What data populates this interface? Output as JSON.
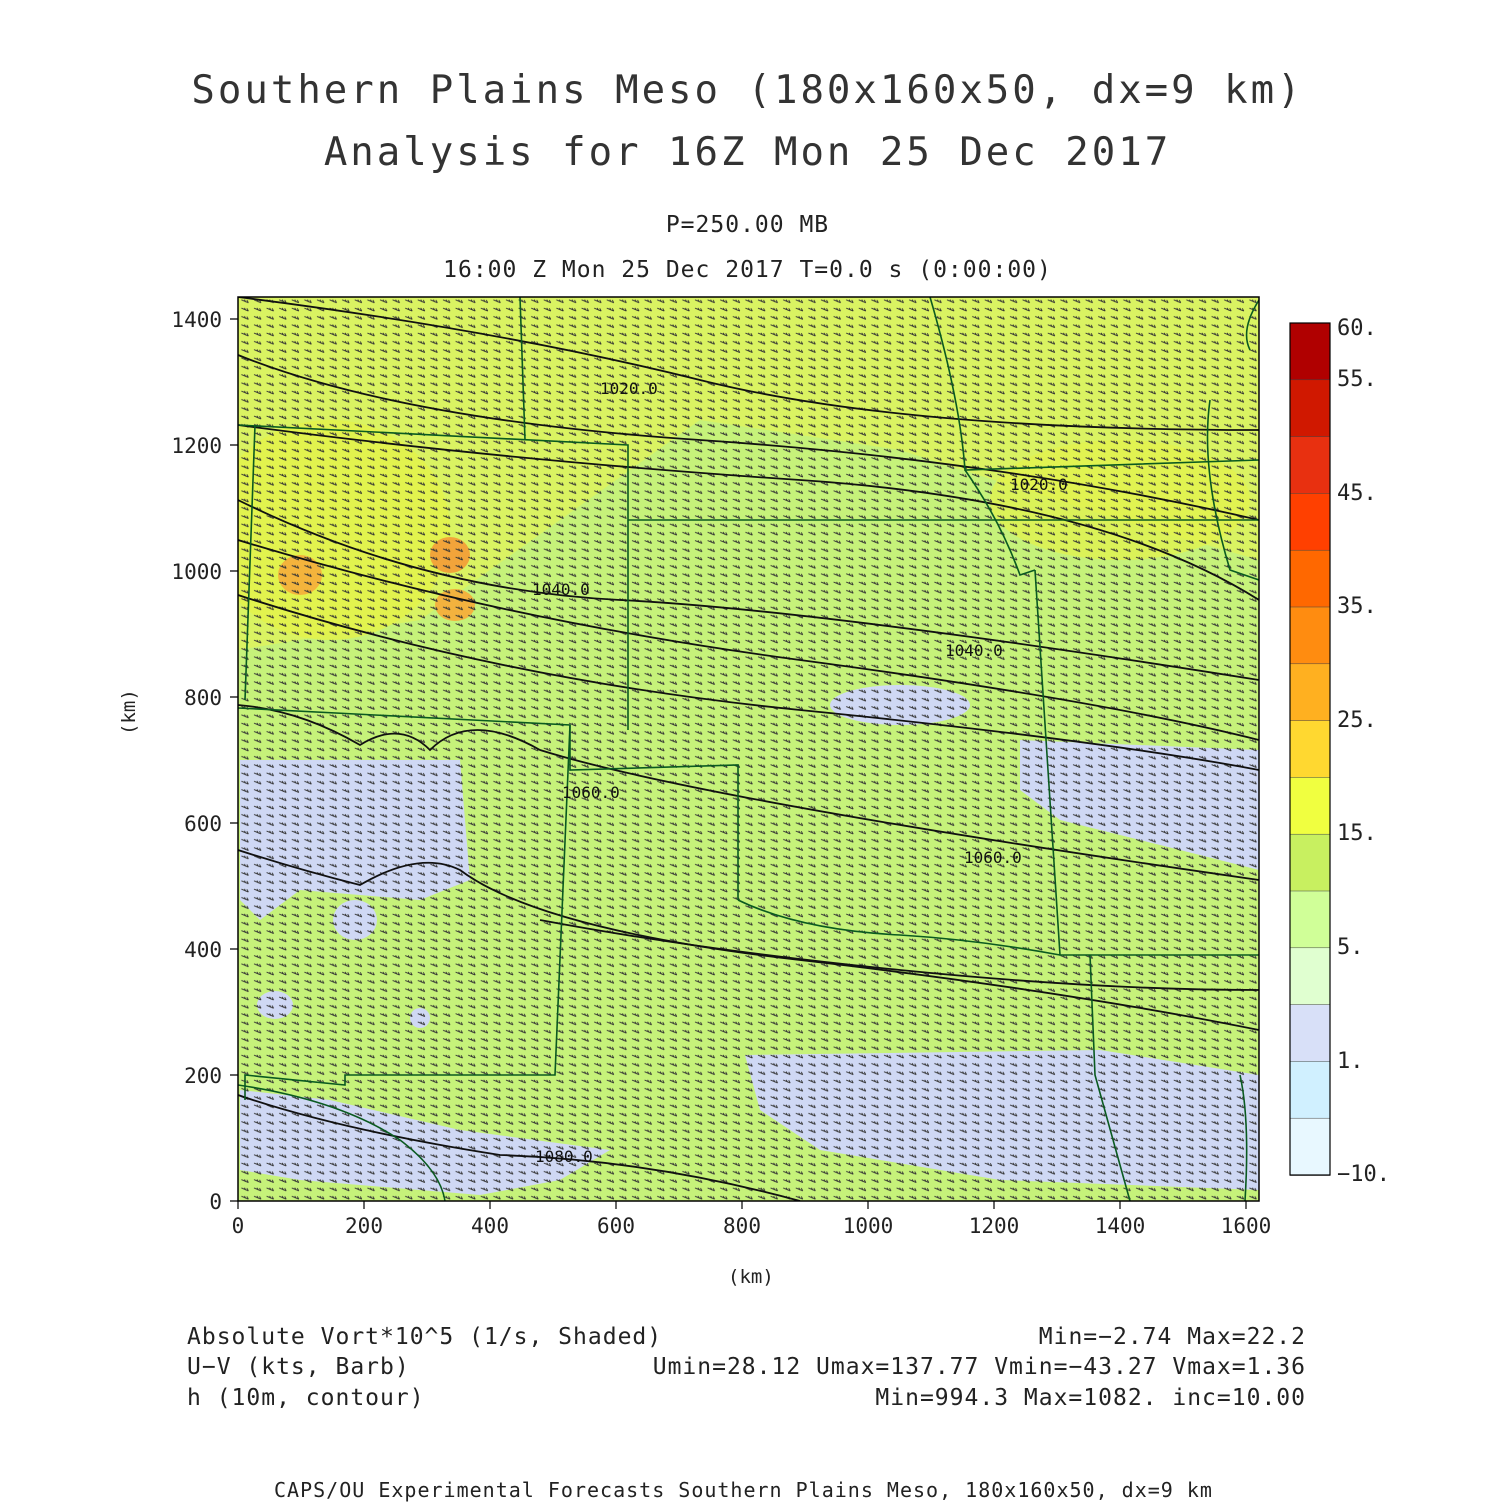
{
  "header": {
    "title_line1": "Southern Plains Meso (180x160x50, dx=9 km)",
    "title_line2": "Analysis for 16Z Mon 25 Dec 2017",
    "level": "P=250.00 MB",
    "time": "16:00 Z Mon 25 Dec 2017    T=0.0 s (0:00:00)"
  },
  "map": {
    "x_axis": {
      "label": "(km)",
      "ticks": [
        "0",
        "200",
        "400",
        "600",
        "800",
        "1000",
        "1200",
        "1400",
        "1600"
      ]
    },
    "y_axis": {
      "label": "(km)",
      "ticks": [
        "0",
        "200",
        "400",
        "600",
        "800",
        "1000",
        "1200",
        "1400"
      ]
    },
    "contour_labels": [
      "1020.0",
      "1020.0",
      "1040.0",
      "1040.0",
      "1060.0",
      "1060.0",
      "1080.0"
    ]
  },
  "colorbar": {
    "ticks": [
      "60.",
      "55.",
      "45.",
      "35.",
      "25.",
      "15.",
      "5.",
      "1.",
      "−10."
    ],
    "colors": [
      "#b00000",
      "#d01800",
      "#e83010",
      "#ff4000",
      "#ff6800",
      "#ff8c10",
      "#ffb020",
      "#ffd830",
      "#f0ff40",
      "#c8f060",
      "#d0ff98",
      "#e0ffd0",
      "#d8e0f8",
      "#d0f0ff",
      "#e8f8ff"
    ]
  },
  "legend": {
    "row1_left": "Absolute Vort*10^5 (1/s, Shaded)",
    "row1_right": "Min=−2.74 Max=22.2",
    "row2_left": "U−V (kts, Barb)",
    "row2_right": "Umin=28.12 Umax=137.77 Vmin=−43.27 Vmax=1.36",
    "row3_left": "h (10m, contour)",
    "row3_right": "Min=994.3 Max=1082. inc=10.00"
  },
  "footer": "CAPS/OU Experimental Forecasts  Southern Plains Meso, 180x160x50, dx=9 km"
}
